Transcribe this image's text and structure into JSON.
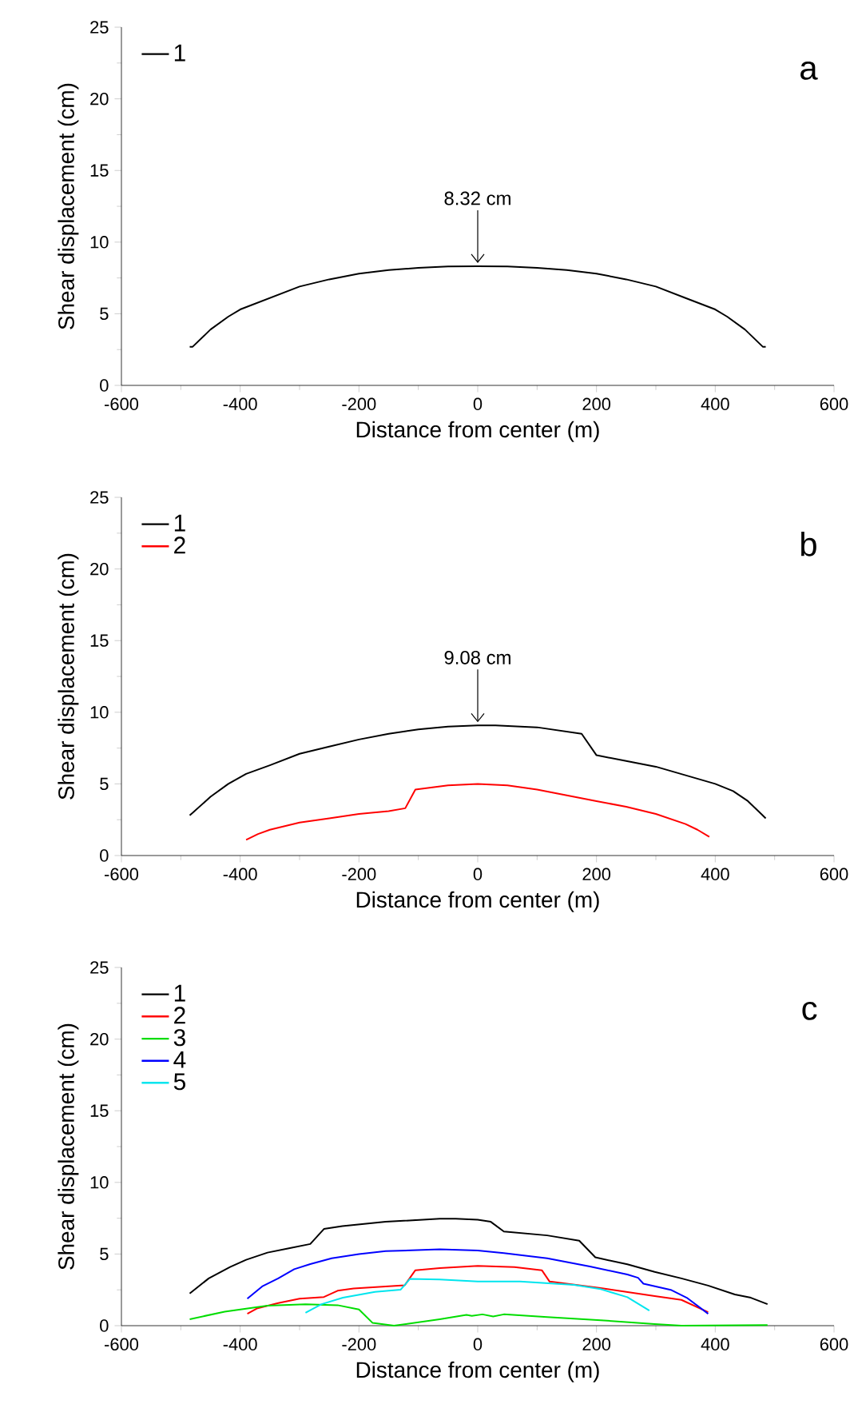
{
  "chart_data": [
    {
      "type": "line",
      "xlabel": "Distance from center (m)",
      "ylabel": "Shear displacement (cm)",
      "xlim": [
        -600,
        600
      ],
      "ylim": [
        0,
        25
      ],
      "xticks": [
        -600,
        -400,
        -200,
        0,
        200,
        400,
        600
      ],
      "yticks": [
        0,
        5,
        10,
        15,
        20,
        25
      ],
      "legend": "top left",
      "marker": "none",
      "line_style": "solid",
      "annotations": [
        "a",
        {
          "text": "8.32 cm",
          "x": 0,
          "y": 8.32
        }
      ],
      "series": [
        {
          "name": "1",
          "color": "#000000",
          "x": [
            -485,
            -480,
            -450,
            -420,
            -400,
            -350,
            -300,
            -250,
            -200,
            -150,
            -100,
            -50,
            0,
            50,
            100,
            150,
            200,
            250,
            300,
            350,
            400,
            420,
            450,
            480,
            485
          ],
          "values": [
            2.7,
            2.7,
            3.9,
            4.8,
            5.3,
            6.1,
            6.9,
            7.4,
            7.8,
            8.05,
            8.2,
            8.3,
            8.32,
            8.3,
            8.2,
            8.05,
            7.8,
            7.4,
            6.9,
            6.1,
            5.3,
            4.8,
            3.9,
            2.7,
            2.7
          ]
        }
      ]
    },
    {
      "type": "line",
      "xlabel": "Distance from center (m)",
      "ylabel": "Shear displacement (cm)",
      "xlim": [
        -600,
        600
      ],
      "ylim": [
        0,
        25
      ],
      "xticks": [
        -600,
        -400,
        -200,
        0,
        200,
        400,
        600
      ],
      "yticks": [
        0,
        5,
        10,
        15,
        20,
        25
      ],
      "legend": "top left",
      "marker": "none",
      "line_style": "solid",
      "annotations": [
        "b",
        {
          "text": "9.08 cm",
          "x": 0,
          "y": 9.08
        }
      ],
      "series": [
        {
          "name": "1",
          "color": "#000000",
          "x": [
            -485,
            -450,
            -420,
            -390,
            -350,
            -300,
            -250,
            -200,
            -150,
            -100,
            -50,
            0,
            30,
            100,
            175,
            200,
            250,
            300,
            350,
            400,
            430,
            455,
            485
          ],
          "values": [
            2.8,
            4.1,
            5.0,
            5.7,
            6.3,
            7.1,
            7.6,
            8.1,
            8.5,
            8.8,
            9.0,
            9.08,
            9.08,
            8.95,
            8.5,
            7.0,
            6.6,
            6.2,
            5.6,
            5.0,
            4.5,
            3.8,
            2.6
          ]
        },
        {
          "name": "2",
          "color": "#ff0000",
          "x": [
            -390,
            -370,
            -350,
            -300,
            -250,
            -200,
            -150,
            -122,
            -105,
            -50,
            0,
            50,
            100,
            150,
            200,
            250,
            300,
            350,
            370,
            390
          ],
          "values": [
            1.1,
            1.5,
            1.8,
            2.3,
            2.6,
            2.9,
            3.1,
            3.3,
            4.6,
            4.9,
            5.0,
            4.9,
            4.6,
            4.2,
            3.8,
            3.4,
            2.9,
            2.2,
            1.8,
            1.3
          ]
        }
      ]
    },
    {
      "type": "line",
      "xlabel": "Distance from center (m)",
      "ylabel": "Shear displacement (cm)",
      "xlim": [
        -600,
        600
      ],
      "ylim": [
        0,
        25
      ],
      "xticks": [
        -600,
        -400,
        -200,
        0,
        200,
        400,
        600
      ],
      "yticks": [
        0,
        5,
        10,
        15,
        20,
        25
      ],
      "legend": "top left",
      "marker": "none",
      "line_style": "solid",
      "annotations": [
        "c"
      ],
      "series": [
        {
          "name": "1",
          "color": "#000000",
          "x": [
            -485,
            -453,
            -417,
            -390,
            -354,
            -318,
            -282,
            -259,
            -228,
            -155,
            -64,
            -37,
            0,
            22,
            44,
            117,
            171,
            198,
            252,
            298,
            343,
            388,
            433,
            460,
            488
          ],
          "values": [
            2.25,
            3.3,
            4.1,
            4.6,
            5.1,
            5.4,
            5.7,
            6.75,
            6.95,
            7.25,
            7.47,
            7.47,
            7.4,
            7.25,
            6.57,
            6.3,
            5.93,
            4.77,
            4.28,
            3.75,
            3.3,
            2.8,
            2.18,
            1.95,
            1.5
          ]
        },
        {
          "name": "2",
          "color": "#ff0000",
          "x": [
            -388,
            -372,
            -336,
            -300,
            -259,
            -236,
            -209,
            -123,
            -105,
            -64,
            0,
            62,
            108,
            121,
            207,
            298,
            343,
            388
          ],
          "values": [
            0.83,
            1.2,
            1.58,
            1.88,
            2.0,
            2.44,
            2.59,
            2.82,
            3.87,
            4.02,
            4.17,
            4.09,
            3.87,
            3.08,
            2.63,
            2.06,
            1.8,
            0.94
          ]
        },
        {
          "name": "3",
          "color": "#00dd00",
          "x": [
            -485,
            -426,
            -354,
            -290,
            -236,
            -200,
            -177,
            -141,
            -64,
            -19,
            -10,
            8,
            26,
            44,
            117,
            207,
            298,
            343,
            488
          ],
          "values": [
            0.45,
            0.98,
            1.39,
            1.5,
            1.43,
            1.13,
            0.19,
            0,
            0.45,
            0.75,
            0.68,
            0.79,
            0.64,
            0.79,
            0.6,
            0.38,
            0.11,
            0,
            0.04
          ]
        },
        {
          "name": "4",
          "color": "#0000ff",
          "x": [
            -388,
            -363,
            -336,
            -309,
            -282,
            -246,
            -200,
            -155,
            -64,
            0,
            44,
            117,
            189,
            252,
            270,
            279,
            325,
            352,
            388
          ],
          "values": [
            1.88,
            2.74,
            3.3,
            3.94,
            4.3,
            4.7,
            5.0,
            5.2,
            5.33,
            5.25,
            5.07,
            4.7,
            4.13,
            3.57,
            3.34,
            2.93,
            2.5,
            1.95,
            0.83
          ]
        },
        {
          "name": "5",
          "color": "#00e5ee",
          "x": [
            -290,
            -263,
            -227,
            -173,
            -130,
            -114,
            -64,
            0,
            71,
            162,
            207,
            252,
            289
          ],
          "values": [
            0.9,
            1.5,
            1.95,
            2.36,
            2.51,
            3.27,
            3.23,
            3.08,
            3.08,
            2.85,
            2.55,
            1.99,
            1.05
          ]
        }
      ]
    }
  ]
}
